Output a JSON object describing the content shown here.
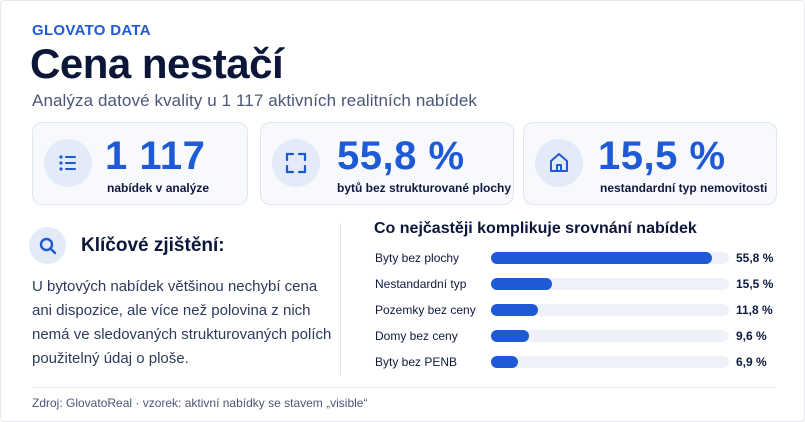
{
  "brand": "GLOVATO DATA",
  "title": "Cena nestačí",
  "subtitle": "Analýza datové kvality u 1 117 aktivních realitních nabídek",
  "stats": [
    {
      "value": "1 117",
      "label": "nabídek v analýze",
      "icon": "list-icon"
    },
    {
      "value": "55,8 %",
      "label": "bytů bez strukturované plochy",
      "icon": "area-frame-icon"
    },
    {
      "value": "15,5 %",
      "label": "nestandardní typ nemovitosti",
      "icon": "house-icon"
    }
  ],
  "key_findings": {
    "title": "Klíčové zjištění:",
    "text": "U bytových nabídek většinou nechybí cena ani dispozice, ale více než polovina z nich nemá ve sledovaných strukturovaných polích použitelný údaj o ploše.",
    "icon": "search-icon"
  },
  "chart_data": {
    "type": "bar",
    "title": "Co nejčastěji komplikuje srovnání nabídek",
    "categories": [
      "Byty bez plochy",
      "Nestandardní typ",
      "Pozemky bez ceny",
      "Domy bez ceny",
      "Byty bez PENB"
    ],
    "values": [
      55.8,
      15.5,
      11.8,
      9.6,
      6.9
    ],
    "value_labels": [
      "55,8 %",
      "15,5 %",
      "11,8 %",
      "9,6 %",
      "6,9 %"
    ],
    "xlim": [
      0,
      60
    ],
    "orientation": "horizontal",
    "bar_color": "#1e5ad6"
  },
  "footer": "Zdroj: GlovatoReal · vzorek: aktivní nabídky se stavem „visible“",
  "colors": {
    "accent": "#1e5ad6",
    "text": "#0b1638",
    "muted": "#4a5778"
  }
}
